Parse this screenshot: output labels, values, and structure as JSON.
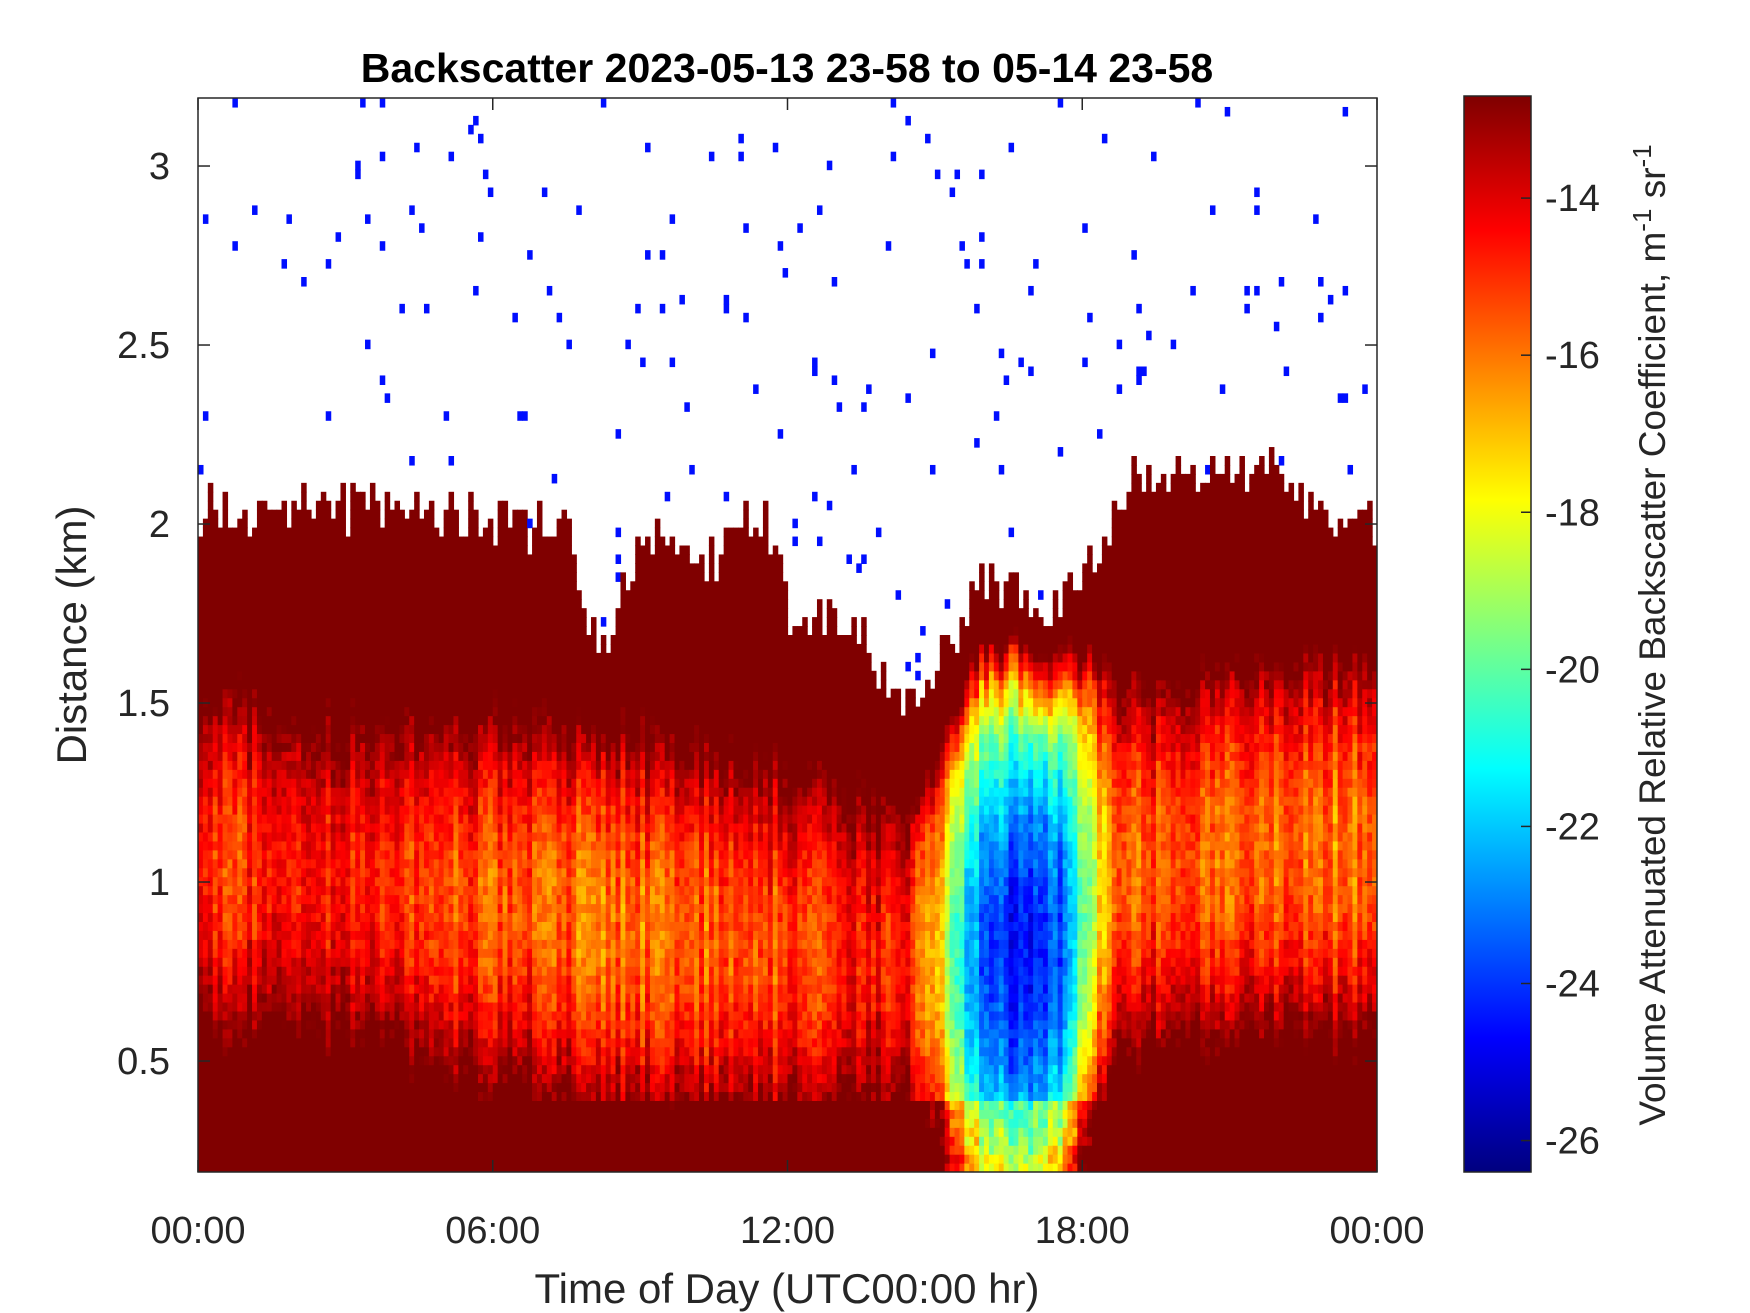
{
  "chart_data": {
    "type": "heatmap",
    "title": "Backscatter 2023-05-13 23-58 to 05-14 23-58",
    "xlabel": "Time of Day (UTC00:00 hr)",
    "ylabel": "Distance (km)",
    "colorbar_label": "Volume Attenuated Relative Backscatter Coefficient, m",
    "colorbar_label_exp1": "-1",
    "colorbar_label_mid": " sr",
    "colorbar_label_exp2": "-1",
    "colormap": "jet",
    "x_ticks": [
      {
        "hour": 0,
        "label": "00:00"
      },
      {
        "hour": 6,
        "label": "06:00"
      },
      {
        "hour": 12,
        "label": "12:00"
      },
      {
        "hour": 18,
        "label": "18:00"
      },
      {
        "hour": 24,
        "label": "00:00"
      }
    ],
    "y_ticks": [
      {
        "value": 0.5,
        "label": "0.5"
      },
      {
        "value": 1,
        "label": "1"
      },
      {
        "value": 1.5,
        "label": "1.5"
      },
      {
        "value": 2,
        "label": "2"
      },
      {
        "value": 2.5,
        "label": "2.5"
      },
      {
        "value": 3,
        "label": "3"
      }
    ],
    "colorbar_ticks": [
      {
        "value": -14,
        "label": "-14"
      },
      {
        "value": -16,
        "label": "-16"
      },
      {
        "value": -18,
        "label": "-18"
      },
      {
        "value": -20,
        "label": "-20"
      },
      {
        "value": -22,
        "label": "-22"
      },
      {
        "value": -24,
        "label": "-24"
      },
      {
        "value": -26,
        "label": "-26"
      }
    ],
    "xlim": [
      0,
      24
    ],
    "ylim": [
      0.19,
      3.19
    ],
    "clim": [
      -26.4,
      -12.7
    ],
    "layer_top_km": [
      {
        "hour": 0,
        "value": 2.05
      },
      {
        "hour": 2,
        "value": 2.05
      },
      {
        "hour": 4,
        "value": 2.05
      },
      {
        "hour": 6,
        "value": 2.0
      },
      {
        "hour": 7.5,
        "value": 2.0
      },
      {
        "hour": 8.2,
        "value": 1.6
      },
      {
        "hour": 9,
        "value": 1.95
      },
      {
        "hour": 10.5,
        "value": 1.9
      },
      {
        "hour": 11.5,
        "value": 2.05
      },
      {
        "hour": 12,
        "value": 1.75
      },
      {
        "hour": 13.5,
        "value": 1.7
      },
      {
        "hour": 14.3,
        "value": 1.5
      },
      {
        "hour": 15,
        "value": 1.6
      },
      {
        "hour": 16,
        "value": 1.85
      },
      {
        "hour": 17.5,
        "value": 1.75
      },
      {
        "hour": 18,
        "value": 1.85
      },
      {
        "hour": 19,
        "value": 2.15
      },
      {
        "hour": 20.5,
        "value": 2.1
      },
      {
        "hour": 22,
        "value": 2.15
      },
      {
        "hour": 23,
        "value": 2.0
      },
      {
        "hour": 24,
        "value": 2.0
      }
    ],
    "aerosol_layer_peaks": [
      {
        "hour": 0.5,
        "height_km": 1.05,
        "value": -15.0
      },
      {
        "hour": 3.0,
        "height_km": 1.0,
        "value": -14.8
      },
      {
        "hour": 6.0,
        "height_km": 0.95,
        "value": -15.5
      },
      {
        "hour": 8.5,
        "height_km": 0.9,
        "value": -16.0
      },
      {
        "hour": 10.0,
        "height_km": 0.85,
        "value": -15.8
      },
      {
        "hour": 12.8,
        "height_km": 0.82,
        "value": -15.5
      },
      {
        "hour": 14.2,
        "height_km": 0.8,
        "value": -14.0
      },
      {
        "hour": 16.5,
        "height_km": 0.8,
        "value": -25.0
      },
      {
        "hour": 19.5,
        "height_km": 1.05,
        "value": -15.5
      },
      {
        "hour": 22.0,
        "height_km": 1.1,
        "value": -16.0
      }
    ],
    "grid": false,
    "legend": "colorbar-right"
  }
}
